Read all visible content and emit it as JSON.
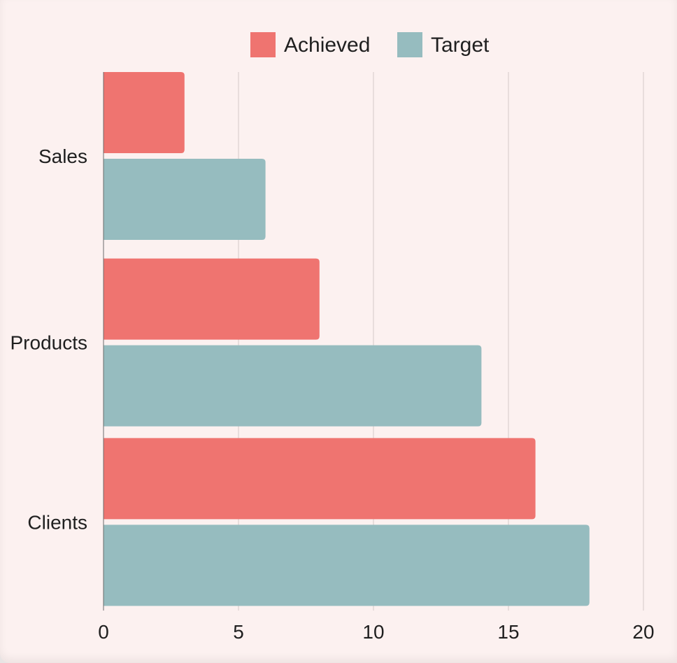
{
  "chart_data": {
    "type": "bar",
    "orientation": "horizontal",
    "categories": [
      "Sales",
      "Products",
      "Clients"
    ],
    "series": [
      {
        "name": "Achieved",
        "values": [
          3,
          8,
          16
        ],
        "color": "#ef7470"
      },
      {
        "name": "Target",
        "values": [
          6,
          14,
          18
        ],
        "color": "#96bcbf"
      }
    ],
    "xlim": [
      0,
      20
    ],
    "xticks": [
      "0",
      "5",
      "10",
      "15",
      "20"
    ],
    "grid": "vertical",
    "legend_position": "top-center",
    "gridline_color": "#d3c9c8",
    "title": "",
    "xlabel": "",
    "ylabel": ""
  }
}
